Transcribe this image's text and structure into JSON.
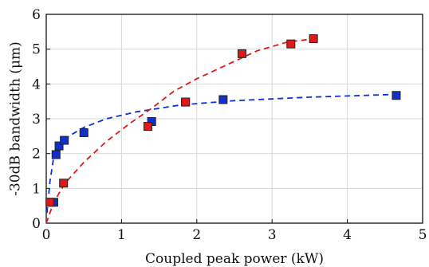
{
  "chart_data": {
    "type": "scatter",
    "xlabel": "Coupled peak power (kW)",
    "ylabel": "-30dB bandwidth (μm)",
    "xlim": [
      0,
      5
    ],
    "ylim": [
      0,
      6
    ],
    "xticks": [
      0,
      1,
      2,
      3,
      4,
      5
    ],
    "yticks": [
      0,
      1,
      2,
      3,
      4,
      5,
      6
    ],
    "xtick_labels": [
      "0",
      "1",
      "2",
      "3",
      "4",
      "5"
    ],
    "ytick_labels": [
      "0",
      "1",
      "2",
      "3",
      "4",
      "5",
      "6"
    ],
    "grid": true,
    "series": [
      {
        "color": "#1030c8",
        "marker": "square",
        "x": [
          0.1,
          0.13,
          0.17,
          0.24,
          0.5,
          1.4,
          1.85,
          2.35,
          4.65
        ],
        "y": [
          0.6,
          1.97,
          2.22,
          2.38,
          2.6,
          2.92,
          3.48,
          3.55,
          3.67
        ],
        "fit": {
          "style": "dashed",
          "x": [
            0.01,
            0.05,
            0.1,
            0.15,
            0.2,
            0.3,
            0.5,
            0.8,
            1.2,
            1.8,
            2.5,
            3.5,
            4.65
          ],
          "y": [
            0.3,
            1.2,
            1.9,
            2.15,
            2.3,
            2.5,
            2.75,
            3.0,
            3.2,
            3.4,
            3.52,
            3.62,
            3.7
          ]
        }
      },
      {
        "color": "#e01818",
        "marker": "square",
        "x": [
          0.05,
          0.23,
          1.35,
          1.85,
          2.6,
          3.25,
          3.55
        ],
        "y": [
          0.6,
          1.15,
          2.78,
          3.48,
          4.87,
          5.15,
          5.3
        ],
        "fit": {
          "style": "dashed",
          "x": [
            0.0,
            0.1,
            0.25,
            0.5,
            0.8,
            1.1,
            1.4,
            1.7,
            2.0,
            2.4,
            2.8,
            3.2,
            3.55
          ],
          "y": [
            0.0,
            0.6,
            1.15,
            1.75,
            2.35,
            2.85,
            3.3,
            3.8,
            4.15,
            4.55,
            4.95,
            5.2,
            5.3
          ]
        }
      }
    ]
  }
}
